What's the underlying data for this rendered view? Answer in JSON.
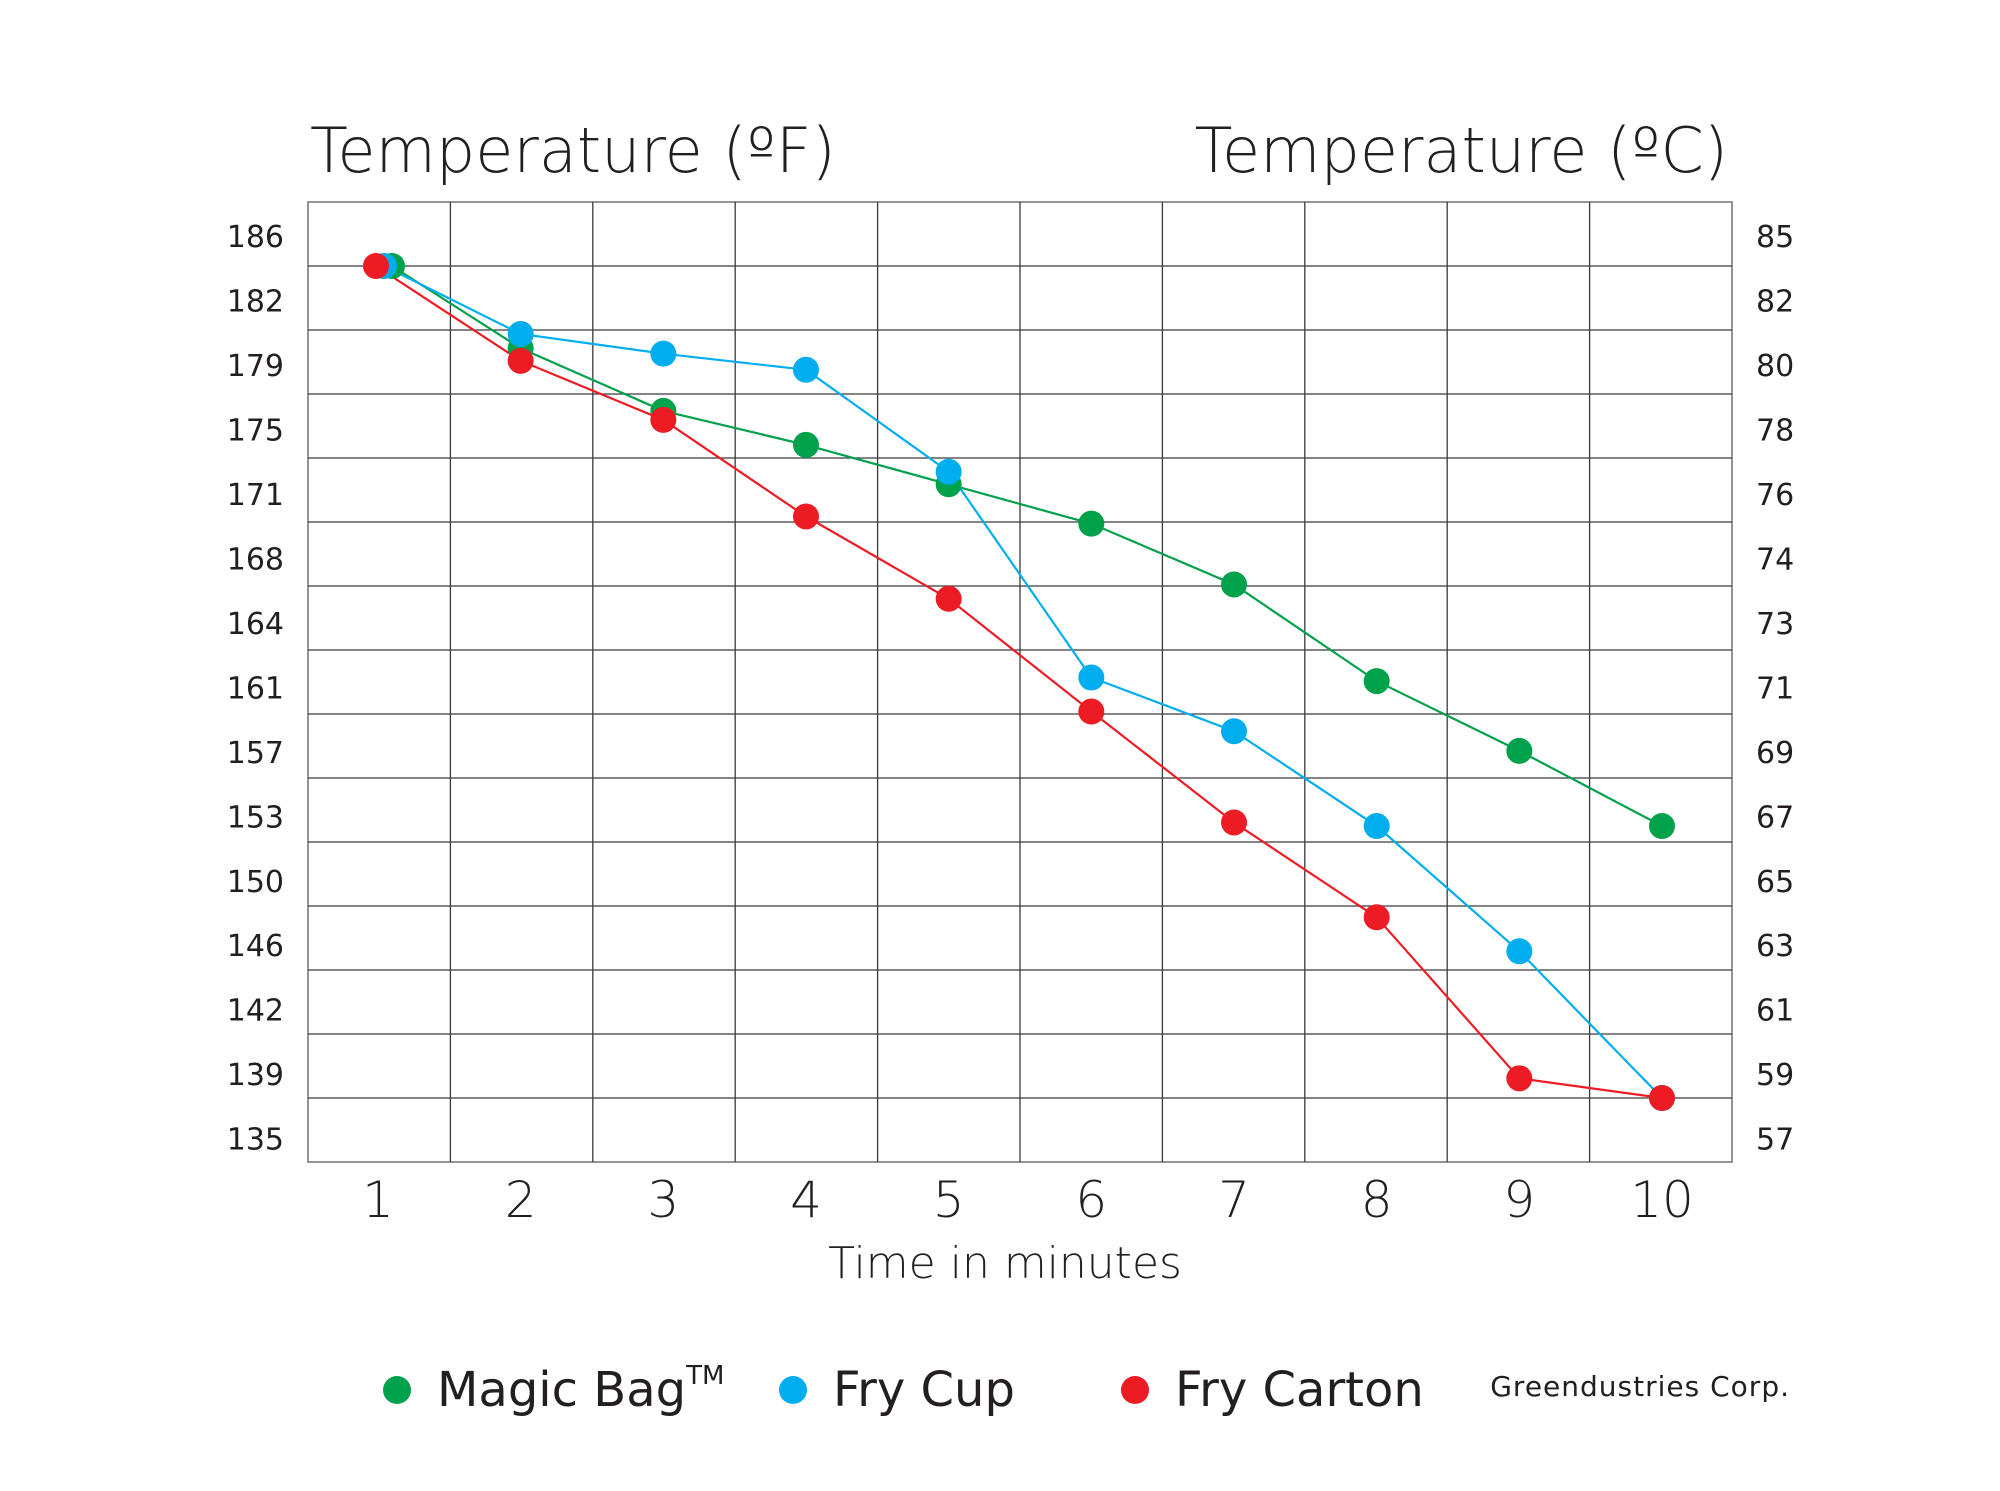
{
  "chart_data": {
    "type": "line",
    "title_left": "Temperature (ºF)",
    "title_right": "Temperature (ºC)",
    "xlabel": "Time in minutes",
    "x": [
      1,
      2,
      3,
      4,
      5,
      6,
      7,
      8,
      9,
      10
    ],
    "xticks": [
      "1",
      "2",
      "3",
      "4",
      "5",
      "6",
      "7",
      "8",
      "9",
      "10"
    ],
    "yticks_left": [
      "186",
      "182",
      "179",
      "175",
      "171",
      "168",
      "164",
      "161",
      "157",
      "153",
      "150",
      "146",
      "142",
      "139",
      "135"
    ],
    "yticks_right": [
      "85",
      "82",
      "80",
      "78",
      "76",
      "74",
      "73",
      "71",
      "69",
      "67",
      "65",
      "63",
      "61",
      "59",
      "57"
    ],
    "ylim_f": [
      135,
      186
    ],
    "grid": true,
    "legend_position": "bottom",
    "series": [
      {
        "name": "Magic Bag",
        "name_sup": "TM",
        "color": "#00a14b",
        "x": [
          1,
          2,
          3,
          4,
          5,
          6,
          7,
          8,
          9,
          10
        ],
        "y": [
          183,
          178.4,
          174.9,
          173.0,
          170.8,
          168.6,
          165.2,
          159.8,
          155.9,
          151.7
        ]
      },
      {
        "name": "Fry Cup",
        "color": "#00aeef",
        "x": [
          1,
          2,
          3,
          4,
          5,
          6,
          7,
          8,
          9,
          10
        ],
        "y": [
          183,
          179.2,
          178.1,
          177.2,
          171.5,
          160.0,
          157.0,
          151.7,
          144.7,
          136.5
        ]
      },
      {
        "name": "Fry Carton",
        "color": "#ed1c24",
        "x": [
          1,
          2,
          3,
          4,
          5,
          6,
          7,
          8,
          9,
          10
        ],
        "y": [
          183,
          177.7,
          174.4,
          169.0,
          164.4,
          158.1,
          151.9,
          146.6,
          137.6,
          136.5
        ]
      }
    ],
    "credit": "Greendustries Corp."
  }
}
